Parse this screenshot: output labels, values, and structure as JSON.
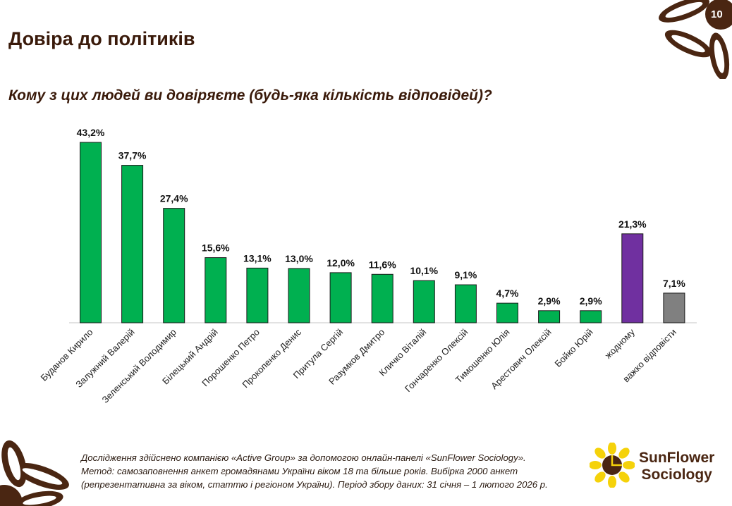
{
  "page": {
    "number": "10",
    "title": "Довіра до політиків",
    "question": "Кому з цих людей ви довіряєте (будь-яка кількість відповідей)?"
  },
  "colors": {
    "bar_main": "#00b050",
    "bar_none": "#7030a0",
    "bar_hard": "#808080",
    "brand_brown": "#4a2612",
    "brand_yellow": "#f5d20a"
  },
  "chart_data": {
    "type": "bar",
    "title": "",
    "xlabel": "",
    "ylabel": "",
    "ylim": [
      0,
      45
    ],
    "grid": false,
    "legend": "none",
    "categories": [
      "Буданов Кирило",
      "Залужний Валерій",
      "Зеленський Володимир",
      "Білецький Андрій",
      "Порошенко Петро",
      "Прокопенко Денис",
      "Притула Сергій",
      "Разумков Дмитро",
      "Кличко Віталій",
      "Гончаренко Олексій",
      "Тимошенко Юлія",
      "Арестович Олексій",
      "Бойко Юрій",
      "жодному",
      "важко відповісти"
    ],
    "values": [
      43.2,
      37.7,
      27.4,
      15.6,
      13.1,
      13.0,
      12.0,
      11.6,
      10.1,
      9.1,
      4.7,
      2.9,
      2.9,
      21.3,
      7.1
    ],
    "value_labels": [
      "43,2%",
      "37,7%",
      "27,4%",
      "15,6%",
      "13,1%",
      "13,0%",
      "12,0%",
      "11,6%",
      "10,1%",
      "9,1%",
      "4,7%",
      "2,9%",
      "2,9%",
      "21,3%",
      "7,1%"
    ],
    "bar_colors": [
      "#00b050",
      "#00b050",
      "#00b050",
      "#00b050",
      "#00b050",
      "#00b050",
      "#00b050",
      "#00b050",
      "#00b050",
      "#00b050",
      "#00b050",
      "#00b050",
      "#00b050",
      "#7030a0",
      "#808080"
    ]
  },
  "footnote": {
    "line1": "Дослідження здійснено компанією «Active Group» за допомогою онлайн-панелі «SunFlower Sociology».",
    "line2": "Метод: самозаповнення анкет громадянами України віком 18 та більше років. Вибірка 2000 анкет",
    "line3": "(репрезентативна за віком, статтю і регіоном України). Період збору даних: 31 січня – 1 лютого 2026 р."
  },
  "brand": {
    "line1": "SunFlower",
    "line2": "Sociology",
    "logo_icon": "sunflower-logo-icon"
  }
}
